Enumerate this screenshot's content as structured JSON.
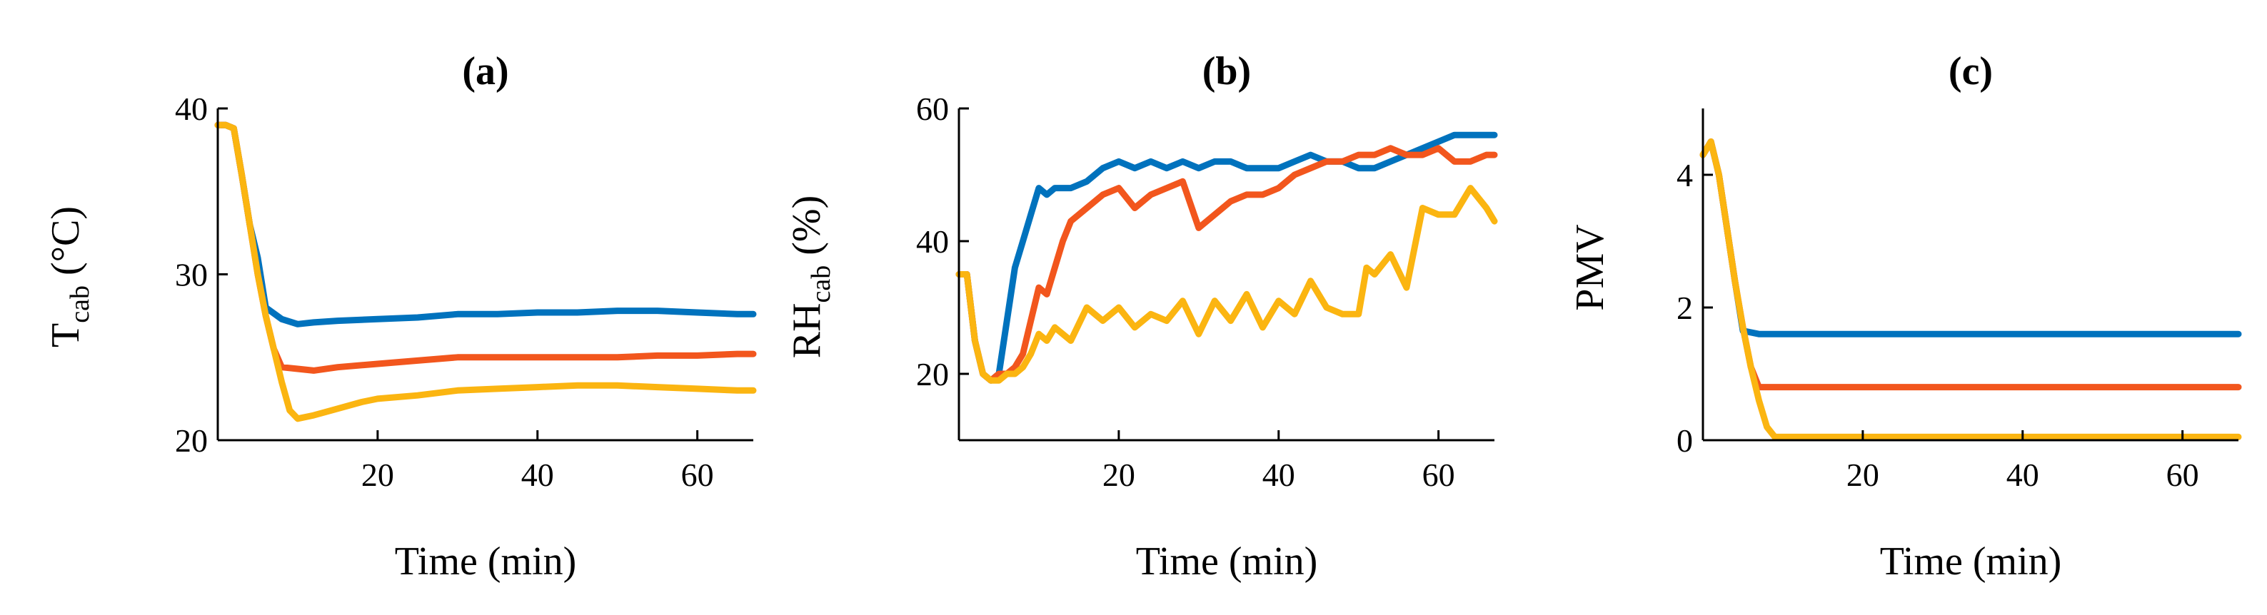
{
  "colors": {
    "series1": "#0072BD",
    "series2": "#F2561D",
    "series3": "#FBB511"
  },
  "chart_data": [
    {
      "type": "line",
      "title": "(a)",
      "xlabel": "Time (min)",
      "ylabel_main": "T",
      "ylabel_sub": "cab",
      "ylabel_unit": " (°C)",
      "xlim": [
        0,
        67
      ],
      "ylim": [
        20,
        40
      ],
      "xticks": [
        20,
        40,
        60
      ],
      "yticks": [
        20,
        30,
        40
      ],
      "series": [
        {
          "name": "series1",
          "x": [
            0,
            1,
            2,
            3,
            4,
            5,
            6,
            8,
            10,
            12,
            15,
            20,
            25,
            30,
            35,
            40,
            45,
            50,
            55,
            60,
            65,
            67
          ],
          "y": [
            39,
            39,
            38.8,
            36,
            33,
            31,
            28,
            27.3,
            27.0,
            27.1,
            27.2,
            27.3,
            27.4,
            27.6,
            27.6,
            27.7,
            27.7,
            27.8,
            27.8,
            27.7,
            27.6,
            27.6
          ]
        },
        {
          "name": "series2",
          "x": [
            0,
            1,
            2,
            3,
            4,
            5,
            6,
            7,
            8,
            10,
            12,
            15,
            20,
            25,
            30,
            35,
            40,
            45,
            50,
            55,
            60,
            65,
            67
          ],
          "y": [
            39,
            39,
            38.8,
            36,
            33,
            30,
            27.5,
            25.5,
            24.4,
            24.3,
            24.2,
            24.4,
            24.6,
            24.8,
            25.0,
            25.0,
            25.0,
            25.0,
            25.0,
            25.1,
            25.1,
            25.2,
            25.2
          ]
        },
        {
          "name": "series3",
          "x": [
            0,
            1,
            2,
            3,
            4,
            5,
            6,
            7,
            8,
            9,
            10,
            12,
            15,
            18,
            20,
            25,
            30,
            35,
            40,
            45,
            50,
            55,
            60,
            65,
            67
          ],
          "y": [
            39,
            39,
            38.8,
            36,
            33,
            30,
            27.5,
            25.5,
            23.5,
            21.8,
            21.3,
            21.5,
            21.9,
            22.3,
            22.5,
            22.7,
            23.0,
            23.1,
            23.2,
            23.3,
            23.3,
            23.2,
            23.1,
            23.0,
            23.0
          ]
        }
      ]
    },
    {
      "type": "line",
      "title": "(b)",
      "xlabel": "Time (min)",
      "ylabel_main": "RH",
      "ylabel_sub": "cab",
      "ylabel_unit": " (%)",
      "xlim": [
        0,
        67
      ],
      "ylim": [
        10,
        60
      ],
      "xticks": [
        20,
        40,
        60
      ],
      "yticks": [
        20,
        40,
        60
      ],
      "series": [
        {
          "name": "series1",
          "x": [
            0,
            1,
            2,
            3,
            4,
            5,
            6,
            7,
            8,
            9,
            10,
            11,
            12,
            14,
            16,
            18,
            20,
            22,
            24,
            26,
            28,
            30,
            32,
            34,
            36,
            38,
            40,
            42,
            44,
            46,
            48,
            50,
            52,
            54,
            56,
            58,
            60,
            62,
            64,
            66,
            67
          ],
          "y": [
            35,
            35,
            25,
            20,
            19,
            20,
            28,
            36,
            40,
            44,
            48,
            47,
            48,
            48,
            49,
            51,
            52,
            51,
            52,
            51,
            52,
            51,
            52,
            52,
            51,
            51,
            51,
            52,
            53,
            52,
            52,
            51,
            51,
            52,
            53,
            54,
            55,
            56,
            56,
            56,
            56
          ]
        },
        {
          "name": "series2",
          "x": [
            0,
            1,
            2,
            3,
            4,
            5,
            6,
            7,
            8,
            9,
            10,
            11,
            12,
            13,
            14,
            16,
            18,
            20,
            22,
            24,
            26,
            28,
            30,
            32,
            34,
            36,
            38,
            40,
            42,
            44,
            46,
            48,
            50,
            52,
            54,
            56,
            58,
            60,
            62,
            64,
            66,
            67
          ],
          "y": [
            35,
            35,
            25,
            20,
            19,
            20,
            20,
            21,
            23,
            28,
            33,
            32,
            36,
            40,
            43,
            45,
            47,
            48,
            45,
            47,
            48,
            49,
            42,
            44,
            46,
            47,
            47,
            48,
            50,
            51,
            52,
            52,
            53,
            53,
            54,
            53,
            53,
            54,
            52,
            52,
            53,
            53
          ]
        },
        {
          "name": "series3",
          "x": [
            0,
            1,
            2,
            3,
            4,
            5,
            6,
            7,
            8,
            9,
            10,
            11,
            12,
            14,
            16,
            18,
            20,
            22,
            24,
            26,
            28,
            30,
            32,
            34,
            36,
            38,
            40,
            42,
            44,
            46,
            48,
            50,
            51,
            52,
            54,
            56,
            58,
            60,
            62,
            64,
            66,
            67
          ],
          "y": [
            35,
            35,
            25,
            20,
            19,
            19,
            20,
            20,
            21,
            23,
            26,
            25,
            27,
            25,
            30,
            28,
            30,
            27,
            29,
            28,
            31,
            26,
            31,
            28,
            32,
            27,
            31,
            29,
            34,
            30,
            29,
            29,
            36,
            35,
            38,
            33,
            45,
            44,
            44,
            48,
            45,
            43
          ]
        }
      ]
    },
    {
      "type": "line",
      "title": "(c)",
      "xlabel": "Time (min)",
      "ylabel_main": "PMV",
      "ylabel_sub": "",
      "ylabel_unit": "",
      "xlim": [
        0,
        67
      ],
      "ylim": [
        0,
        5
      ],
      "xticks": [
        20,
        40,
        60
      ],
      "yticks": [
        0,
        2,
        4
      ],
      "series": [
        {
          "name": "series1",
          "x": [
            0,
            1,
            2,
            3,
            4,
            5,
            7,
            20,
            40,
            60,
            67
          ],
          "y": [
            4.3,
            4.5,
            4.0,
            3.2,
            2.4,
            1.65,
            1.6,
            1.6,
            1.6,
            1.6,
            1.6
          ]
        },
        {
          "name": "series2",
          "x": [
            0,
            1,
            2,
            3,
            4,
            5,
            6,
            7,
            20,
            40,
            60,
            67
          ],
          "y": [
            4.3,
            4.5,
            4.0,
            3.2,
            2.4,
            1.7,
            1.1,
            0.8,
            0.8,
            0.8,
            0.8,
            0.8
          ]
        },
        {
          "name": "series3",
          "x": [
            0,
            1,
            2,
            3,
            4,
            5,
            6,
            7,
            8,
            9,
            20,
            40,
            60,
            67
          ],
          "y": [
            4.3,
            4.5,
            4.0,
            3.2,
            2.4,
            1.7,
            1.1,
            0.6,
            0.2,
            0.05,
            0.05,
            0.05,
            0.05,
            0.05
          ]
        }
      ]
    }
  ]
}
